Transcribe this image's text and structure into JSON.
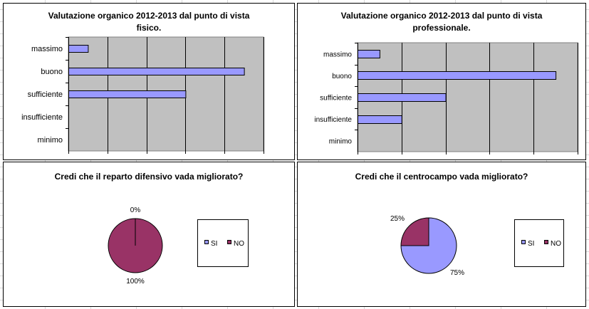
{
  "colors": {
    "bar": "#9999ff",
    "plot_bg": "#c0c0c0",
    "si": "#9999ff",
    "no": "#993366",
    "grid": "#d9d9d9"
  },
  "chart_data": [
    {
      "type": "bar",
      "orientation": "horizontal",
      "title": "Valutazione organico 2012-2013 dal punto di vista fisico.",
      "categories": [
        "massimo",
        "buono",
        "sufficiente",
        "insufficiente",
        "minimo"
      ],
      "values": [
        0.5,
        4.5,
        3,
        0,
        0
      ],
      "xlim": [
        0,
        5
      ],
      "grid": true
    },
    {
      "type": "bar",
      "orientation": "horizontal",
      "title": "Valutazione organico 2012-2013 dal punto di vista professionale.",
      "categories": [
        "massimo",
        "buono",
        "sufficiente",
        "insufficiente",
        "minimo"
      ],
      "values": [
        0.5,
        4.5,
        2,
        1,
        0
      ],
      "xlim": [
        0,
        5
      ],
      "grid": true
    },
    {
      "type": "pie",
      "title": "Credi che il reparto difensivo vada migliorato?",
      "slices": [
        {
          "label": "SI",
          "value": 0,
          "text": "0%"
        },
        {
          "label": "NO",
          "value": 100,
          "text": "100%"
        }
      ],
      "legend": "right"
    },
    {
      "type": "pie",
      "title": "Credi che il centrocampo vada migliorato?",
      "slices": [
        {
          "label": "SI",
          "value": 75,
          "text": "75%"
        },
        {
          "label": "NO",
          "value": 25,
          "text": "25%"
        }
      ],
      "legend": "right"
    }
  ]
}
